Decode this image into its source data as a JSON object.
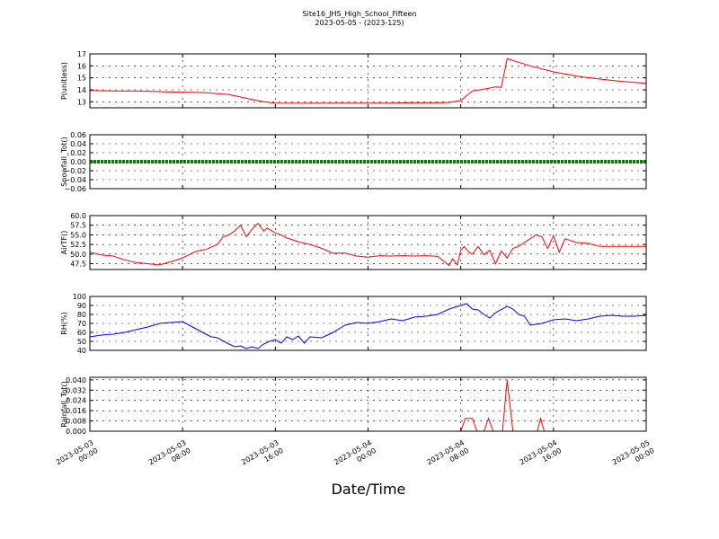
{
  "figure": {
    "title": "Site16_JHS_High_School_Fifteen",
    "subtitle": "2023-05-05 - (2023-125)",
    "xlabel": "Date/Time"
  },
  "chart_data": [
    {
      "type": "line",
      "ylabel": "P(unitless)",
      "ylim": [
        12.5,
        17
      ],
      "yticks": [
        "13",
        "14",
        "15",
        "16",
        "17"
      ],
      "color": "#ff0000",
      "grid": true,
      "x_hours": [
        0,
        2,
        4,
        6,
        8,
        9,
        10,
        12,
        14,
        15,
        16,
        18,
        20,
        22,
        24,
        26,
        28,
        30,
        31,
        32,
        33,
        34,
        35,
        35.5,
        36,
        37,
        38,
        40,
        42,
        44,
        46,
        48
      ],
      "values": [
        13.95,
        13.9,
        13.9,
        13.85,
        13.8,
        13.8,
        13.75,
        13.6,
        13.2,
        13.0,
        12.9,
        12.88,
        12.88,
        12.9,
        12.88,
        12.9,
        12.92,
        12.92,
        12.95,
        13.1,
        13.9,
        14.05,
        14.25,
        14.2,
        16.6,
        16.3,
        16.0,
        15.5,
        15.15,
        14.9,
        14.7,
        14.55
      ]
    },
    {
      "type": "line",
      "ylabel": "Snowfall_Tot()",
      "ylim": [
        -0.06,
        0.06
      ],
      "yticks": [
        "−0.06",
        "−0.04",
        "−0.02",
        "0.00",
        "0.02",
        "0.04",
        "0.06"
      ],
      "color": "#008000",
      "grid": true,
      "x_hours": [
        0,
        48
      ],
      "values": [
        0,
        0
      ]
    },
    {
      "type": "line",
      "ylabel": "AirTF()",
      "ylim": [
        46,
        60
      ],
      "yticks": [
        "47.5",
        "50.0",
        "52.5",
        "55.0",
        "57.5",
        "60.0"
      ],
      "color": "#ff0000",
      "grid": true,
      "x_hours": [
        0,
        1,
        2,
        3,
        4,
        5,
        6,
        7,
        8,
        9,
        9.5,
        10,
        11,
        11.5,
        12,
        12.5,
        13,
        13.5,
        14,
        14.5,
        15,
        15.3,
        15.6,
        16,
        16.5,
        17,
        18,
        19,
        20,
        21,
        22,
        23,
        24,
        25,
        26,
        27,
        28,
        29,
        30,
        31,
        31.3,
        31.7,
        32,
        32.3,
        32.6,
        33,
        33.5,
        34,
        34.5,
        35,
        35.5,
        36,
        36.5,
        37,
        38,
        38.5,
        39,
        39.5,
        40,
        40.5,
        41,
        42,
        43,
        44,
        45,
        46,
        47,
        48
      ],
      "values": [
        50.5,
        49.8,
        49.5,
        48.5,
        47.8,
        47.5,
        47.2,
        48.0,
        49.0,
        50.5,
        51.0,
        51.2,
        52.5,
        54.5,
        55.0,
        56.0,
        57.5,
        54.5,
        56.5,
        58.0,
        56.0,
        56.8,
        56.2,
        55.5,
        55.0,
        54.2,
        53.2,
        52.5,
        51.5,
        50.2,
        50.3,
        49.5,
        49.2,
        49.6,
        49.5,
        49.6,
        49.5,
        49.6,
        49.4,
        47.0,
        48.8,
        47.2,
        51.0,
        52.0,
        50.8,
        50.0,
        52.0,
        49.8,
        51.0,
        47.5,
        50.8,
        49.0,
        51.5,
        52.0,
        54.0,
        55.0,
        54.5,
        51.5,
        54.8,
        50.5,
        54.0,
        53.0,
        52.8,
        52.0,
        52.0,
        52.0,
        52.0,
        52.0
      ]
    },
    {
      "type": "line",
      "ylabel": "RH(%)",
      "ylim": [
        40,
        100
      ],
      "yticks": [
        "40",
        "50",
        "60",
        "70",
        "80",
        "90",
        "100"
      ],
      "color": "#0000ff",
      "grid": true,
      "x_hours": [
        0,
        1,
        2,
        3,
        4,
        5,
        6,
        7,
        8,
        9,
        10,
        10.5,
        11,
        12,
        12.5,
        13,
        13.5,
        14,
        14.5,
        15,
        15.5,
        16,
        16.5,
        17,
        17.5,
        18,
        18.5,
        19,
        20,
        21,
        22,
        23,
        24,
        25,
        26,
        27,
        28,
        29,
        30,
        31,
        31.5,
        32,
        32.5,
        33,
        33.5,
        34,
        34.5,
        35,
        36,
        36.5,
        37,
        37.5,
        38,
        39,
        40,
        41,
        42,
        43,
        44,
        45,
        46,
        47,
        48
      ],
      "values": [
        55,
        57,
        58,
        60,
        63,
        66,
        70,
        71,
        72,
        65,
        58,
        55,
        54,
        47,
        44,
        45,
        42,
        44,
        42,
        47,
        50,
        52,
        48,
        55,
        52,
        56,
        48,
        55,
        54,
        60,
        68,
        71,
        70,
        72,
        75,
        73,
        77,
        78,
        80,
        86,
        88,
        90,
        92,
        86,
        85,
        80,
        76,
        82,
        89,
        86,
        80,
        78,
        68,
        70,
        74,
        75,
        73,
        75,
        78,
        79,
        78,
        78,
        79
      ]
    },
    {
      "type": "line",
      "ylabel": "Rainfall_Tot()",
      "ylim": [
        0,
        0.042
      ],
      "yticks": [
        "0.000",
        "0.008",
        "0.016",
        "0.024",
        "0.032",
        "0.040"
      ],
      "color": "#ff0000",
      "grid": true,
      "x_hours": [
        0,
        32.0,
        32.4,
        33.0,
        33.4,
        34.0,
        34.4,
        34.8,
        35.6,
        36.0,
        36.5,
        37.5,
        38.6,
        38.9,
        39.2,
        48
      ],
      "values": [
        0,
        0,
        0.01,
        0.01,
        0,
        0,
        0.01,
        0,
        0,
        0.04,
        0,
        0,
        0,
        0.01,
        0,
        0
      ]
    }
  ],
  "x_axis": {
    "ticks": [
      {
        "hour": 0,
        "l1": "2023-05-03",
        "l2": "00:00"
      },
      {
        "hour": 8,
        "l1": "2023-05-03",
        "l2": "08:00"
      },
      {
        "hour": 16,
        "l1": "2023-05-03",
        "l2": "16:00"
      },
      {
        "hour": 24,
        "l1": "2023-05-04",
        "l2": "00:00"
      },
      {
        "hour": 32,
        "l1": "2023-05-04",
        "l2": "08:00"
      },
      {
        "hour": 40,
        "l1": "2023-05-04",
        "l2": "16:00"
      },
      {
        "hour": 48,
        "l1": "2023-05-05",
        "l2": "00:00"
      }
    ]
  }
}
